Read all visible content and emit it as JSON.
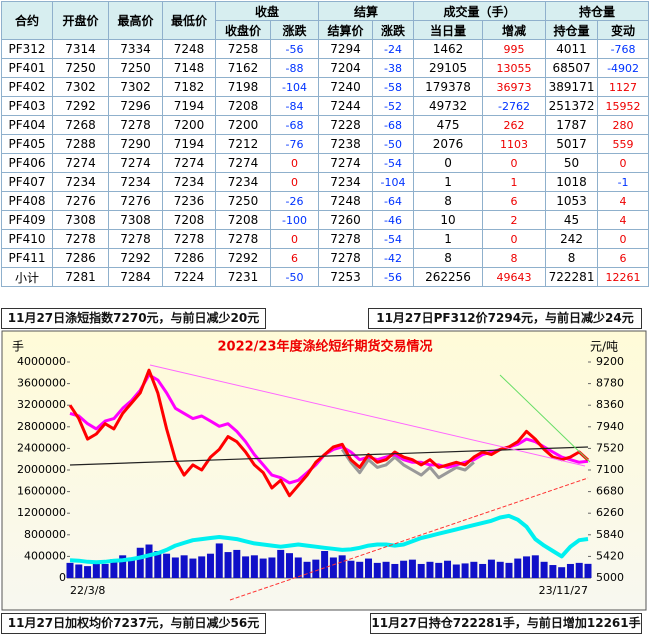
{
  "table": {
    "header_top": [
      "合约",
      "开盘价",
      "最高价",
      "最低价",
      "收盘",
      "结算",
      "成交量（手）",
      "持仓量"
    ],
    "header_sub": [
      "收盘价",
      "涨跌",
      "结算价",
      "涨跌",
      "当日量",
      "增减",
      "持仓量",
      "变动"
    ],
    "rows": [
      [
        "PF312",
        "7314",
        "7334",
        "7248",
        "7258",
        "-56",
        "7294",
        "-24",
        "1462",
        "995",
        "4011",
        "-768"
      ],
      [
        "PF401",
        "7250",
        "7250",
        "7148",
        "7162",
        "-88",
        "7204",
        "-38",
        "29105",
        "13055",
        "68507",
        "-4902"
      ],
      [
        "PF402",
        "7302",
        "7302",
        "7182",
        "7198",
        "-104",
        "7240",
        "-58",
        "179378",
        "36973",
        "389171",
        "1127"
      ],
      [
        "PF403",
        "7292",
        "7296",
        "7194",
        "7208",
        "-84",
        "7244",
        "-52",
        "49732",
        "-2762",
        "251372",
        "15952"
      ],
      [
        "PF404",
        "7268",
        "7278",
        "7200",
        "7200",
        "-68",
        "7228",
        "-68",
        "475",
        "262",
        "1787",
        "280"
      ],
      [
        "PF405",
        "7288",
        "7290",
        "7194",
        "7212",
        "-76",
        "7238",
        "-50",
        "2076",
        "1103",
        "5017",
        "559"
      ],
      [
        "PF406",
        "7274",
        "7274",
        "7274",
        "7274",
        "0",
        "7274",
        "-54",
        "0",
        "0",
        "50",
        "0"
      ],
      [
        "PF407",
        "7234",
        "7234",
        "7234",
        "7234",
        "0",
        "7234",
        "-104",
        "1",
        "1",
        "1018",
        "-1"
      ],
      [
        "PF408",
        "7276",
        "7276",
        "7236",
        "7250",
        "-26",
        "7248",
        "-64",
        "8",
        "6",
        "1053",
        "4"
      ],
      [
        "PF409",
        "7308",
        "7308",
        "7208",
        "7208",
        "-100",
        "7260",
        "-46",
        "10",
        "2",
        "45",
        "4"
      ],
      [
        "PF410",
        "7278",
        "7278",
        "7278",
        "7278",
        "0",
        "7278",
        "-54",
        "1",
        "0",
        "242",
        "0"
      ],
      [
        "PF411",
        "7286",
        "7292",
        "7286",
        "7292",
        "6",
        "7278",
        "-42",
        "8",
        "8",
        "8",
        "6"
      ],
      [
        "小计",
        "7281",
        "7284",
        "7224",
        "7231",
        "-50",
        "7253",
        "-56",
        "262256",
        "49643",
        "722281",
        "12261"
      ]
    ]
  },
  "banners": {
    "top_left": "11月27日涤短指数7270元，与前日减少20元",
    "top_right": "11月27日PF312价7294元，与前日减少24元",
    "bottom_left": "11月27日加权均价7237元，与前日减少56元",
    "bottom_right": "11月27日持仓722281手，与前日增加12261手"
  },
  "chart_data": {
    "type": "combo",
    "title": "2022/23年度涤纶短纤期货交易情况",
    "y_label": "手",
    "y2_label": "元/吨",
    "categories": [
      "22/3/8",
      null,
      null,
      null,
      null,
      null,
      null,
      null,
      null,
      null,
      null,
      null,
      null,
      null,
      null,
      null,
      null,
      null,
      null,
      null,
      null,
      null,
      null,
      null,
      null,
      null,
      null,
      null,
      null,
      null,
      null,
      null,
      null,
      null,
      null,
      null,
      null,
      null,
      null,
      null,
      null,
      null,
      null,
      null,
      null,
      null,
      null,
      null,
      null,
      null,
      null,
      null,
      null,
      null,
      null,
      null,
      null,
      null,
      null,
      "23/11/27"
    ],
    "ylim": [
      0,
      4000000
    ],
    "yticks": [
      0,
      400000,
      800000,
      1200000,
      1600000,
      2000000,
      2400000,
      2800000,
      3200000,
      3600000,
      4000000
    ],
    "y2lim": [
      5000,
      9200
    ],
    "y2ticks": [
      5000,
      5420,
      5840,
      6260,
      6680,
      7100,
      7520,
      7940,
      8360,
      8780,
      9200
    ],
    "series": [
      {
        "type": "bar",
        "color": "#1010c8",
        "values": [
          280000,
          250000,
          220000,
          300000,
          260000,
          350000,
          420000,
          380000,
          560000,
          620000,
          500000,
          450000,
          380000,
          420000,
          360000,
          400000,
          450000,
          640000,
          480000,
          520000,
          400000,
          420000,
          360000,
          380000,
          520000,
          460000,
          380000,
          300000,
          340000,
          500000,
          380000,
          420000,
          320000,
          300000,
          360000,
          280000,
          300000,
          260000,
          320000,
          340000,
          260000,
          300000,
          280000,
          320000,
          250000,
          270000,
          300000,
          260000,
          340000,
          300000,
          280000,
          360000,
          400000,
          420000,
          300000,
          240000,
          200000,
          260000,
          280000,
          262256
        ]
      },
      {
        "type": "line",
        "color": "#00f0f0",
        "width": 4,
        "values": [
          330000,
          320000,
          300000,
          290000,
          300000,
          320000,
          330000,
          350000,
          380000,
          420000,
          460000,
          520000,
          600000,
          650000,
          700000,
          720000,
          740000,
          760000,
          740000,
          720000,
          680000,
          640000,
          620000,
          600000,
          580000,
          600000,
          620000,
          600000,
          580000,
          560000,
          540000,
          520000,
          530000,
          560000,
          600000,
          620000,
          620000,
          600000,
          620000,
          680000,
          740000,
          780000,
          820000,
          860000,
          900000,
          940000,
          980000,
          1020000,
          1060000,
          1120000,
          1150000,
          1080000,
          950000,
          720000,
          600000,
          500000,
          400000,
          580000,
          700000,
          722281
        ]
      },
      {
        "type": "line",
        "axis": "y2",
        "color": "#999999",
        "width": 3,
        "values": [
          null,
          null,
          null,
          null,
          null,
          null,
          null,
          null,
          null,
          null,
          null,
          null,
          null,
          null,
          null,
          null,
          null,
          null,
          null,
          null,
          null,
          null,
          null,
          null,
          null,
          null,
          null,
          null,
          null,
          null,
          null,
          7500,
          7250,
          7050,
          7300,
          7150,
          7200,
          7350,
          7200,
          7100,
          7000,
          7150,
          6950,
          7050,
          7150,
          7100,
          7250,
          null,
          null,
          null,
          null,
          null,
          null,
          null,
          null,
          null,
          null,
          null,
          null,
          null
        ]
      },
      {
        "type": "line",
        "axis": "y2",
        "color": "#ff00ff",
        "width": 3,
        "values": [
          8200,
          8150,
          8000,
          7900,
          8050,
          8100,
          8300,
          8450,
          8650,
          8950,
          8850,
          8600,
          8300,
          8200,
          8100,
          8150,
          8050,
          7950,
          8000,
          7850,
          7650,
          7400,
          7200,
          7000,
          6950,
          6850,
          6900,
          7050,
          7200,
          7400,
          7500,
          7550,
          7450,
          7300,
          7350,
          7300,
          7350,
          7400,
          7300,
          7250,
          7250,
          7200,
          7200,
          7150,
          7200,
          7250,
          7300,
          7400,
          7450,
          7500,
          7550,
          7600,
          7700,
          7650,
          7550,
          7450,
          7350,
          7300,
          7250,
          7270
        ]
      },
      {
        "type": "line",
        "axis": "y2",
        "color": "#ff0000",
        "width": 3,
        "values": [
          8360,
          8100,
          7700,
          7800,
          8000,
          7900,
          8200,
          8400,
          8600,
          9040,
          8600,
          7900,
          7300,
          7000,
          7200,
          7100,
          7350,
          7500,
          7750,
          7650,
          7450,
          7200,
          7050,
          6750,
          6900,
          6600,
          6800,
          7000,
          7250,
          7400,
          7550,
          7600,
          7300,
          7150,
          7400,
          7250,
          7300,
          7450,
          7350,
          7300,
          7200,
          7300,
          7150,
          7200,
          7250,
          7200,
          7350,
          7450,
          7400,
          7500,
          7550,
          7650,
          7850,
          7700,
          7500,
          7350,
          7300,
          7350,
          7450,
          7294
        ]
      }
    ]
  }
}
